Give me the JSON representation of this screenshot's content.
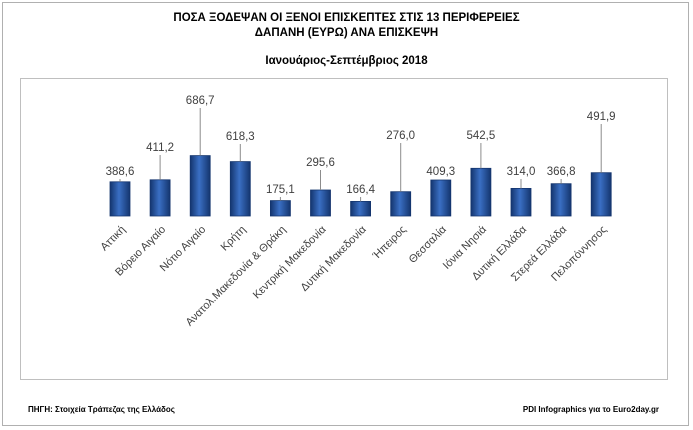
{
  "title": "ΠΟΣΑ ΞΟΔΕΨΑΝ ΟΙ ΞΕΝΟΙ ΕΠΙΣΚΕΠΤΕΣ ΣΤΙΣ 13 ΠΕΡΙΦΕΡΕΙΕΣ",
  "title_line2": "ΔΑΠΑΝΗ (ΕΥΡΩ) ΑΝΑ ΕΠΙΣΚΕΨΗ",
  "subtitle": "Ιανουάριος-Σεπτέμβριος 2018",
  "footer": {
    "source": "ΠΗΓΗ: Στοιχεία Τράπεζας της Ελλάδος",
    "credit": "PDI Infographics για το Euro2day.gr"
  },
  "colors": {
    "bar": "#3a6fc4",
    "bar_dark": "#14356e",
    "leader_line": "#8c8c8c",
    "text": "#404040"
  },
  "chart_data": {
    "type": "bar",
    "categories": [
      "Αττική",
      "Βόρειο Αιγαίο",
      "Νότιο Αιγαίο",
      "Κρήτη",
      "Ανατολ.Μακεδονία & Θράκη",
      "Κεντρική Μακεδονία",
      "Δυτική Μακεδονία",
      "Ήπειρος",
      "Θεσσαλία",
      "Ιόνια Νησιά",
      "Δυτική Ελλάδα",
      "Στερεά Ελλάδα",
      "Πελοπόννησος"
    ],
    "values": [
      388.6,
      411.2,
      686.7,
      618.3,
      175.1,
      295.6,
      166.4,
      276.0,
      409.3,
      542.5,
      314.0,
      366.8,
      491.9
    ],
    "value_labels": [
      "388,6",
      "411,2",
      "686,7",
      "618,3",
      "175,1",
      "295,6",
      "166,4",
      "276,0",
      "409,3",
      "542,5",
      "314,0",
      "366,8",
      "491,9"
    ],
    "ylim": [
      0,
      700
    ],
    "grid": false,
    "legend": "none"
  }
}
